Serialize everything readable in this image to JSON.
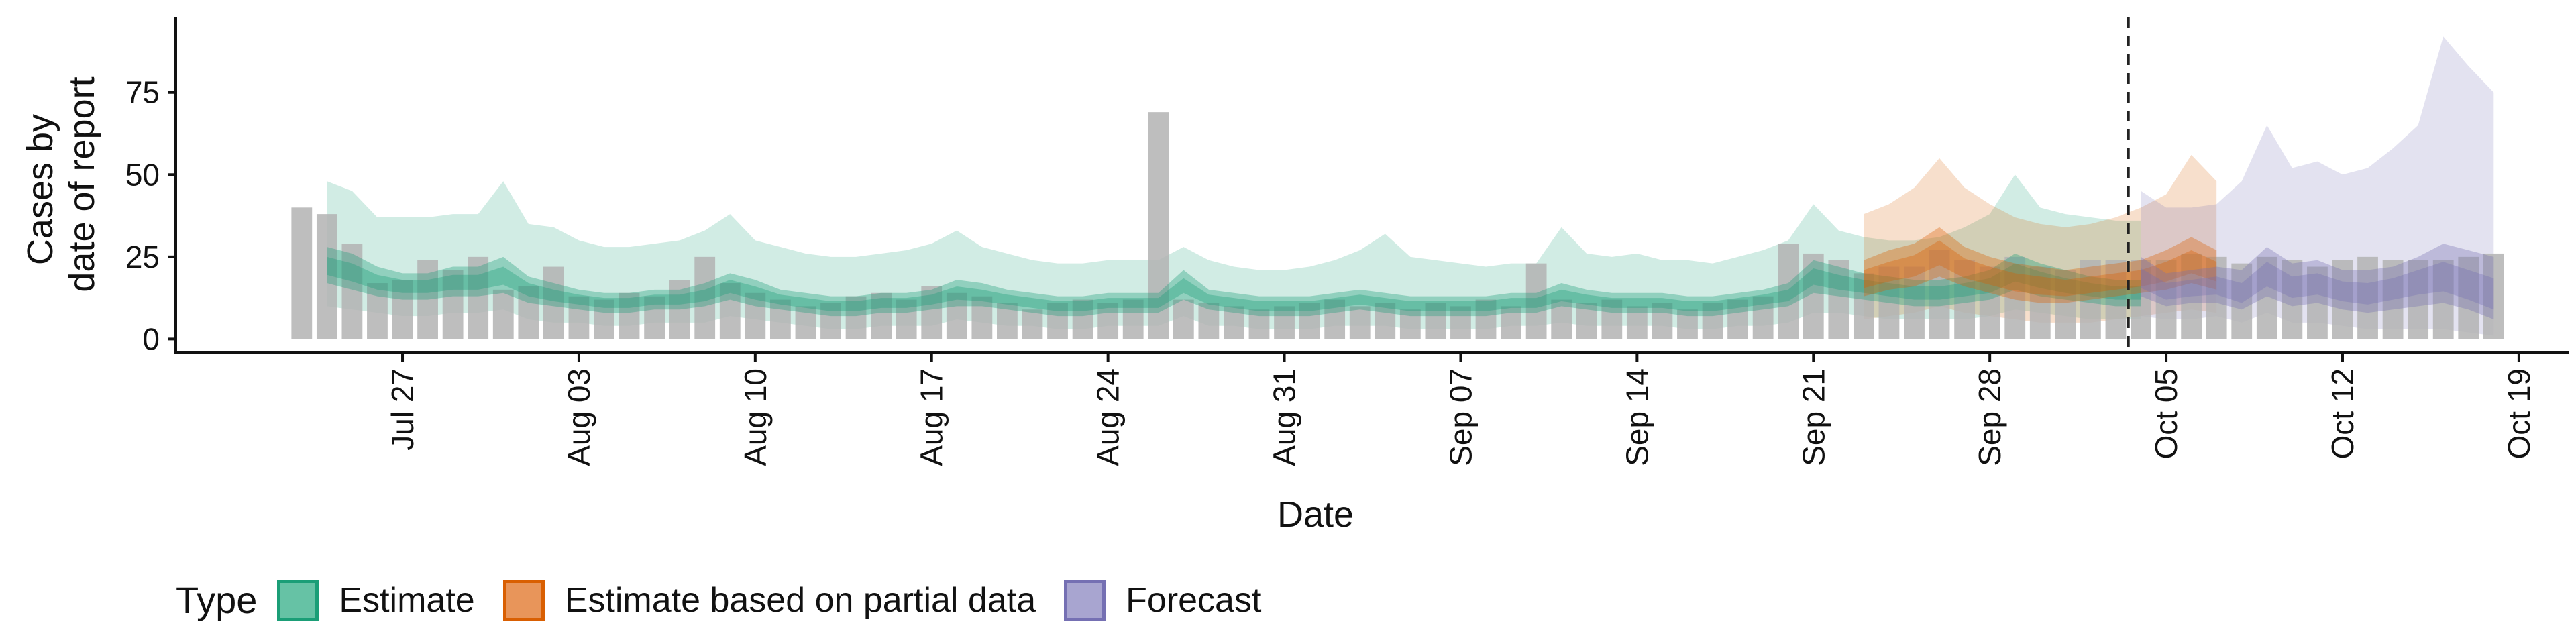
{
  "chart_data": {
    "type": "bar",
    "xlabel": "Date",
    "ylabel": "Cases by date of report",
    "ylabel_lines": [
      "Cases by",
      "date of report"
    ],
    "x_ticks": [
      "Jul 27",
      "Aug 03",
      "Aug 10",
      "Aug 17",
      "Aug 24",
      "Aug 31",
      "Sep 07",
      "Sep 14",
      "Sep 21",
      "Sep 28",
      "Oct 05",
      "Oct 12",
      "Oct 19"
    ],
    "x_tick_dates": [
      "2020-07-27",
      "2020-08-03",
      "2020-08-10",
      "2020-08-17",
      "2020-08-24",
      "2020-08-31",
      "2020-09-07",
      "2020-09-14",
      "2020-09-21",
      "2020-09-28",
      "2020-10-05",
      "2020-10-12",
      "2020-10-19"
    ],
    "y_ticks": [
      0,
      25,
      50,
      75
    ],
    "xlim": [
      "2020-07-18",
      "2020-10-21"
    ],
    "ylim": [
      -4,
      98
    ],
    "forecast_date": "2020-10-03",
    "legend": {
      "title": "Type",
      "position": "bottom-left",
      "items": [
        {
          "label": "Estimate",
          "fill": "#66c2a5",
          "border": "#1b9e77"
        },
        {
          "label": "Estimate based on partial data",
          "fill": "#e8955a",
          "border": "#d95f02"
        },
        {
          "label": "Forecast",
          "fill": "#a8a5d0",
          "border": "#7570b3"
        }
      ]
    },
    "colors": {
      "bars": "#b3b3b3",
      "estimate": "#1b9e77",
      "partial": "#d95f02",
      "forecast": "#7570b3",
      "vline": "#222222"
    },
    "bars": {
      "start_date": "2020-07-23",
      "values": [
        40,
        38,
        29,
        17,
        18,
        24,
        21,
        25,
        15,
        16,
        22,
        13,
        12,
        14,
        13,
        18,
        25,
        17,
        14,
        12,
        10,
        11,
        13,
        14,
        12,
        16,
        14,
        13,
        11,
        9,
        11,
        12,
        11,
        12,
        69,
        12,
        11,
        10,
        9,
        10,
        11,
        12,
        10,
        11,
        9,
        11,
        10,
        12,
        10,
        23,
        12,
        11,
        12,
        10,
        11,
        9,
        11,
        12,
        13,
        29,
        26,
        24,
        20,
        22,
        22,
        27,
        24,
        22,
        25,
        22,
        21,
        24,
        24,
        24,
        24,
        26,
        25,
        23,
        25,
        24,
        22,
        24,
        25,
        24,
        24,
        24,
        25,
        26
      ]
    },
    "series": [
      {
        "type": "Estimate",
        "start_date": "2020-07-24",
        "median": [
          22,
          20,
          17,
          16,
          16,
          17,
          17,
          19,
          15,
          13,
          12,
          11,
          11,
          12,
          12,
          13,
          16,
          14,
          12,
          11,
          10,
          10,
          11,
          11,
          12,
          14,
          13,
          12,
          11,
          10,
          10,
          11,
          11,
          11,
          16,
          12,
          11,
          10,
          10,
          10,
          11,
          12,
          11,
          10,
          10,
          10,
          10,
          11,
          11,
          13,
          12,
          11,
          11,
          11,
          10,
          10,
          11,
          12,
          13,
          19,
          17,
          16,
          15,
          14,
          14,
          15,
          16,
          20,
          18,
          16,
          15,
          14,
          14
        ],
        "lower50": [
          17,
          15,
          13,
          12,
          12,
          13,
          13,
          14,
          11,
          10,
          9,
          8,
          8,
          9,
          9,
          10,
          12,
          10,
          9,
          8,
          7,
          7,
          8,
          8,
          9,
          10,
          10,
          9,
          8,
          7,
          7,
          8,
          8,
          8,
          12,
          9,
          8,
          7,
          7,
          7,
          8,
          9,
          8,
          7,
          7,
          7,
          7,
          8,
          8,
          10,
          9,
          8,
          8,
          8,
          7,
          7,
          8,
          9,
          10,
          14,
          13,
          12,
          11,
          10,
          10,
          11,
          12,
          15,
          13,
          12,
          11,
          10,
          10
        ],
        "upper50": [
          28,
          26,
          22,
          20,
          20,
          22,
          22,
          25,
          19,
          17,
          15,
          14,
          14,
          15,
          15,
          17,
          20,
          18,
          15,
          14,
          13,
          13,
          14,
          14,
          15,
          18,
          17,
          15,
          14,
          13,
          13,
          14,
          14,
          14,
          21,
          15,
          14,
          13,
          13,
          13,
          14,
          15,
          14,
          13,
          13,
          13,
          13,
          14,
          14,
          17,
          15,
          14,
          14,
          14,
          13,
          13,
          14,
          15,
          17,
          24,
          22,
          20,
          19,
          18,
          18,
          19,
          21,
          26,
          23,
          21,
          19,
          18,
          18
        ],
        "lower90": [
          10,
          9,
          8,
          7,
          7,
          8,
          8,
          9,
          6,
          5,
          5,
          4,
          4,
          5,
          5,
          5,
          7,
          6,
          5,
          4,
          3,
          3,
          4,
          4,
          4,
          6,
          5,
          4,
          4,
          3,
          3,
          4,
          4,
          4,
          7,
          4,
          4,
          3,
          3,
          3,
          4,
          4,
          4,
          3,
          3,
          3,
          3,
          4,
          4,
          5,
          4,
          4,
          4,
          4,
          3,
          3,
          4,
          4,
          5,
          8,
          8,
          7,
          6,
          6,
          6,
          6,
          7,
          9,
          8,
          7,
          6,
          6,
          6
        ],
        "upper90": [
          48,
          45,
          37,
          37,
          37,
          38,
          38,
          48,
          35,
          34,
          30,
          28,
          28,
          29,
          30,
          33,
          38,
          30,
          28,
          26,
          25,
          25,
          26,
          27,
          29,
          33,
          28,
          26,
          24,
          23,
          23,
          24,
          24,
          24,
          28,
          24,
          22,
          21,
          21,
          22,
          24,
          27,
          32,
          25,
          24,
          23,
          22,
          23,
          23,
          34,
          26,
          25,
          26,
          24,
          24,
          23,
          25,
          27,
          30,
          41,
          33,
          31,
          30,
          30,
          31,
          34,
          38,
          50,
          40,
          38,
          37,
          36,
          36
        ]
      },
      {
        "type": "Estimate based on partial data",
        "start_date": "2020-09-23",
        "median": [
          18,
          20,
          22,
          26,
          21,
          19,
          17,
          16,
          15,
          16,
          17,
          18,
          20,
          23,
          20
        ],
        "lower50": [
          13,
          15,
          16,
          19,
          16,
          14,
          12,
          11,
          11,
          12,
          13,
          14,
          15,
          17,
          15
        ],
        "upper50": [
          24,
          27,
          29,
          34,
          28,
          25,
          23,
          22,
          21,
          22,
          23,
          24,
          27,
          31,
          27
        ],
        "lower90": [
          6,
          7,
          8,
          10,
          8,
          7,
          6,
          5,
          5,
          5,
          6,
          7,
          8,
          9,
          8
        ],
        "upper90": [
          38,
          41,
          46,
          55,
          46,
          41,
          37,
          35,
          34,
          35,
          37,
          40,
          44,
          56,
          48
        ]
      },
      {
        "type": "Forecast",
        "start_date": "2020-10-04",
        "median": [
          18,
          14,
          15,
          16,
          13,
          19,
          15,
          16,
          14,
          13,
          15,
          17,
          18,
          15,
          12
        ],
        "lower50": [
          13,
          10,
          11,
          11,
          9,
          13,
          10,
          11,
          9,
          8,
          9,
          10,
          11,
          9,
          6
        ],
        "upper50": [
          25,
          20,
          21,
          22,
          21,
          28,
          23,
          24,
          21,
          21,
          22,
          25,
          29,
          27,
          25
        ],
        "lower90": [
          7,
          6,
          6,
          7,
          5,
          8,
          5,
          5,
          4,
          3,
          3,
          3,
          3,
          2,
          1
        ],
        "upper90": [
          45,
          40,
          40,
          41,
          48,
          65,
          52,
          54,
          50,
          52,
          58,
          65,
          92,
          83,
          75
        ]
      }
    ]
  }
}
